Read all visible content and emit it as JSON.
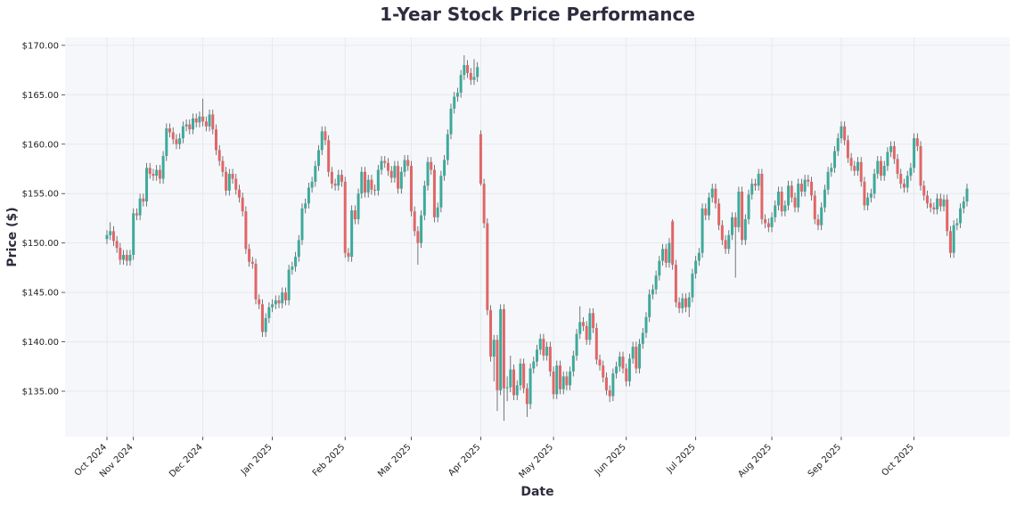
{
  "chart_data": {
    "type": "candlestick",
    "title": "1-Year Stock Price Performance",
    "x_label": "Date",
    "y_label": "Price ($)",
    "categories": [
      "Oct 2024",
      null,
      null,
      null,
      null,
      null,
      null,
      null,
      "Nov 2024",
      null,
      null,
      null,
      null,
      null,
      null,
      null,
      null,
      null,
      null,
      null,
      null,
      null,
      null,
      null,
      null,
      null,
      null,
      null,
      null,
      "Dec 2024",
      null,
      null,
      null,
      null,
      null,
      null,
      null,
      null,
      null,
      null,
      null,
      null,
      null,
      null,
      null,
      null,
      null,
      null,
      null,
      null,
      "Jan 2025",
      null,
      null,
      null,
      null,
      null,
      null,
      null,
      null,
      null,
      null,
      null,
      null,
      null,
      null,
      null,
      null,
      null,
      null,
      null,
      null,
      null,
      "Feb 2025",
      null,
      null,
      null,
      null,
      null,
      null,
      null,
      null,
      null,
      null,
      null,
      null,
      null,
      null,
      null,
      null,
      null,
      null,
      null,
      "Mar 2025",
      null,
      null,
      null,
      null,
      null,
      null,
      null,
      null,
      null,
      null,
      null,
      null,
      null,
      null,
      null,
      null,
      null,
      null,
      null,
      null,
      "Apr 2025",
      null,
      null,
      null,
      null,
      null,
      null,
      null,
      null,
      null,
      null,
      null,
      null,
      null,
      null,
      null,
      null,
      null,
      null,
      null,
      null,
      null,
      "May 2025",
      null,
      null,
      null,
      null,
      null,
      null,
      null,
      null,
      null,
      null,
      null,
      null,
      null,
      null,
      null,
      null,
      null,
      null,
      null,
      null,
      null,
      "Jun 2025",
      null,
      null,
      null,
      null,
      null,
      null,
      null,
      null,
      null,
      null,
      null,
      null,
      null,
      null,
      null,
      null,
      null,
      null,
      null,
      null,
      "Jul 2025",
      null,
      null,
      null,
      null,
      null,
      null,
      null,
      null,
      null,
      null,
      null,
      null,
      null,
      null,
      null,
      null,
      null,
      null,
      null,
      null,
      null,
      null,
      "Aug 2025",
      null,
      null,
      null,
      null,
      null,
      null,
      null,
      null,
      null,
      null,
      null,
      null,
      null,
      null,
      null,
      null,
      null,
      null,
      null,
      null,
      "Sep 2025",
      null,
      null,
      null,
      null,
      null,
      null,
      null,
      null,
      null,
      null,
      null,
      null,
      null,
      null,
      null,
      null,
      null,
      null,
      null,
      null,
      null,
      "Oct 2025",
      null,
      null,
      null,
      null,
      null,
      null,
      null,
      null,
      null,
      null,
      null,
      null,
      null,
      null,
      null,
      null
    ],
    "open": [
      150.4,
      150.8,
      151.2,
      150.2,
      149.5,
      148.3,
      148.8,
      148.2,
      148.8,
      153.0,
      152.8,
      154.5,
      154.2,
      157.6,
      157.0,
      156.8,
      157.4,
      156.5,
      158.8,
      161.6,
      161.2,
      160.5,
      160.0,
      160.6,
      161.8,
      162.0,
      161.5,
      162.6,
      162.2,
      162.8,
      162.3,
      161.8,
      163.0,
      161.5,
      159.4,
      158.3,
      157.2,
      155.3,
      157.0,
      156.5,
      155.4,
      154.6,
      153.2,
      149.4,
      148.1,
      147.9,
      144.3,
      143.8,
      141.0,
      142.4,
      143.5,
      143.8,
      144.2,
      143.9,
      145.0,
      144.2,
      147.3,
      147.6,
      148.6,
      150.3,
      153.5,
      154.0,
      155.6,
      156.2,
      157.8,
      159.4,
      161.3,
      160.4,
      157.2,
      156.0,
      155.8,
      156.9,
      156.2,
      149.0,
      148.6,
      153.3,
      152.4,
      155.0,
      157.2,
      155.1,
      156.4,
      155.4,
      155.3,
      157.4,
      158.3,
      158.1,
      157.3,
      156.6,
      157.8,
      155.5,
      157.2,
      158.4,
      157.8,
      153.2,
      151.2,
      150.0,
      152.8,
      155.8,
      158.2,
      157.4,
      152.6,
      153.6,
      156.8,
      158.4,
      161.0,
      163.6,
      164.8,
      165.2,
      167.0,
      168.0,
      167.2,
      166.5,
      166.8,
      161.0,
      156.0,
      152.0,
      143.2,
      138.5,
      140.2,
      135.1,
      143.3,
      135.3,
      135.4,
      137.2,
      134.6,
      135.6,
      137.8,
      135.3,
      133.7,
      137.3,
      138.0,
      139.2,
      140.3,
      138.6,
      139.5,
      137.0,
      134.7,
      137.6,
      135.2,
      136.5,
      135.6,
      137.0,
      138.6,
      140.8,
      142.0,
      141.6,
      140.2,
      142.9,
      141.4,
      138.2,
      137.6,
      136.4,
      135.1,
      134.5,
      136.8,
      137.5,
      138.5,
      137.3,
      136.0,
      138.3,
      139.5,
      137.3,
      139.8,
      140.9,
      142.5,
      144.8,
      145.3,
      146.7,
      148.2,
      149.4,
      148.0,
      152.2,
      147.8,
      144.0,
      143.4,
      144.4,
      143.5,
      144.5,
      146.9,
      148.2,
      149.0,
      153.5,
      152.8,
      154.6,
      155.5,
      154.0,
      151.8,
      150.3,
      149.4,
      150.8,
      152.6,
      151.6,
      155.2,
      150.3,
      152.4,
      154.9,
      156.0,
      155.8,
      157.0,
      152.4,
      152.0,
      151.6,
      152.6,
      153.8,
      155.2,
      153.2,
      153.8,
      155.8,
      154.6,
      153.6,
      156.0,
      155.2,
      156.4,
      156.2,
      154.8,
      152.4,
      151.8,
      153.6,
      155.4,
      157.2,
      157.6,
      159.3,
      160.6,
      161.8,
      160.4,
      158.6,
      157.8,
      157.3,
      158.2,
      156.2,
      153.8,
      154.6,
      155.0,
      157.0,
      158.3,
      156.8,
      157.8,
      159.2,
      159.8,
      158.5,
      157.0,
      156.0,
      155.6,
      156.8,
      157.6,
      160.6,
      159.8,
      155.8,
      154.8,
      154.0,
      153.6,
      153.4,
      154.5,
      153.7,
      154.4,
      151.2,
      149.0,
      151.8,
      152.0,
      153.5,
      154.2
    ],
    "high": [
      151.3,
      152.1,
      151.7,
      150.7,
      150.0,
      149.3,
      149.3,
      149.3,
      153.5,
      153.5,
      155.0,
      155.0,
      158.1,
      158.1,
      157.5,
      157.9,
      157.9,
      159.3,
      162.1,
      162.1,
      161.7,
      161.0,
      161.1,
      162.3,
      162.5,
      162.5,
      163.1,
      163.1,
      163.3,
      164.6,
      162.8,
      163.5,
      163.5,
      162.0,
      159.9,
      158.8,
      157.7,
      157.5,
      157.5,
      157.0,
      155.9,
      155.1,
      153.7,
      149.9,
      148.6,
      148.4,
      144.8,
      144.3,
      142.9,
      144.0,
      144.3,
      144.7,
      144.7,
      145.5,
      145.5,
      147.8,
      148.1,
      149.1,
      150.8,
      154.0,
      154.5,
      156.1,
      156.7,
      158.3,
      159.9,
      161.8,
      161.8,
      160.9,
      157.7,
      156.5,
      157.4,
      157.4,
      156.7,
      149.5,
      153.8,
      153.8,
      155.5,
      157.7,
      157.7,
      156.9,
      156.9,
      155.9,
      157.9,
      158.8,
      158.8,
      158.6,
      157.8,
      158.3,
      158.3,
      157.7,
      158.9,
      158.9,
      158.3,
      153.7,
      151.7,
      153.3,
      156.3,
      158.7,
      158.7,
      157.9,
      154.1,
      157.3,
      158.9,
      161.5,
      164.1,
      165.3,
      165.7,
      167.5,
      169.0,
      168.5,
      167.7,
      168.6,
      168.3,
      161.4,
      156.5,
      152.5,
      143.7,
      140.7,
      140.7,
      143.8,
      143.8,
      136.5,
      138.6,
      137.7,
      136.1,
      138.3,
      138.3,
      135.8,
      137.8,
      138.5,
      139.7,
      140.8,
      140.8,
      140.0,
      140.0,
      137.5,
      138.1,
      138.1,
      137.0,
      137.0,
      137.5,
      139.1,
      141.3,
      143.6,
      142.5,
      142.1,
      143.4,
      143.4,
      141.9,
      138.7,
      138.1,
      136.9,
      135.6,
      137.3,
      138.0,
      139.0,
      139.0,
      137.8,
      138.8,
      140.0,
      140.0,
      140.3,
      141.4,
      143.0,
      145.3,
      145.8,
      147.2,
      148.7,
      149.9,
      149.9,
      150.5,
      152.4,
      148.3,
      144.5,
      144.9,
      144.9,
      145.0,
      147.4,
      148.7,
      149.5,
      154.0,
      154.0,
      155.1,
      156.0,
      156.0,
      154.5,
      152.3,
      150.8,
      151.3,
      153.1,
      153.1,
      155.7,
      155.7,
      152.9,
      155.4,
      156.5,
      156.5,
      157.5,
      157.5,
      152.9,
      152.5,
      153.1,
      154.3,
      155.7,
      155.7,
      154.3,
      156.3,
      156.3,
      155.1,
      156.5,
      156.5,
      156.9,
      156.9,
      156.7,
      155.3,
      152.9,
      154.1,
      155.9,
      157.7,
      158.1,
      159.8,
      161.1,
      162.3,
      162.3,
      160.9,
      159.1,
      158.3,
      158.7,
      158.7,
      156.7,
      155.1,
      155.5,
      157.5,
      158.8,
      158.8,
      158.3,
      159.7,
      160.3,
      160.3,
      159.0,
      157.5,
      156.5,
      157.3,
      158.1,
      161.1,
      161.1,
      160.3,
      156.3,
      155.3,
      154.5,
      154.1,
      155.0,
      155.0,
      154.9,
      154.9,
      151.7,
      152.3,
      152.5,
      154.0,
      154.7,
      156.0
    ],
    "low": [
      149.9,
      150.3,
      149.7,
      149.0,
      147.8,
      147.8,
      147.7,
      147.7,
      148.3,
      152.3,
      152.3,
      153.7,
      153.7,
      156.5,
      156.3,
      156.3,
      156.0,
      156.0,
      158.3,
      160.7,
      160.0,
      159.5,
      159.5,
      160.1,
      161.3,
      161.0,
      161.0,
      161.7,
      161.7,
      161.8,
      161.3,
      161.3,
      161.0,
      158.9,
      157.8,
      156.7,
      154.8,
      154.8,
      156.0,
      154.9,
      154.1,
      152.7,
      148.9,
      147.6,
      147.4,
      143.8,
      143.3,
      140.5,
      140.5,
      141.9,
      143.0,
      143.3,
      143.4,
      143.4,
      143.7,
      143.7,
      146.8,
      147.1,
      148.1,
      149.8,
      153.0,
      153.5,
      155.1,
      155.7,
      157.3,
      158.9,
      159.9,
      156.7,
      155.5,
      155.3,
      155.3,
      155.7,
      148.5,
      148.1,
      148.1,
      151.9,
      151.9,
      154.5,
      154.6,
      154.6,
      154.9,
      154.8,
      154.8,
      156.9,
      157.6,
      156.8,
      156.1,
      156.1,
      155.0,
      155.0,
      156.7,
      157.3,
      152.7,
      150.7,
      147.8,
      149.5,
      152.3,
      155.3,
      156.9,
      152.1,
      152.1,
      153.1,
      156.3,
      157.9,
      160.5,
      163.1,
      164.3,
      164.7,
      166.5,
      166.7,
      166.0,
      166.0,
      166.3,
      155.8,
      151.5,
      142.7,
      138.0,
      136.0,
      133.0,
      134.6,
      132.0,
      134.0,
      134.9,
      134.1,
      134.1,
      135.1,
      134.8,
      132.4,
      133.2,
      136.8,
      137.5,
      138.7,
      138.1,
      138.1,
      136.5,
      134.2,
      134.2,
      134.7,
      134.7,
      135.1,
      135.1,
      136.5,
      138.1,
      140.3,
      141.1,
      139.7,
      139.7,
      140.9,
      137.7,
      137.1,
      135.9,
      134.6,
      133.9,
      134.0,
      136.3,
      137.0,
      136.8,
      135.5,
      135.5,
      137.8,
      136.8,
      136.8,
      139.3,
      140.4,
      142.0,
      144.3,
      144.8,
      146.2,
      147.7,
      147.5,
      147.5,
      147.3,
      143.5,
      142.9,
      142.9,
      143.0,
      142.5,
      144.0,
      146.4,
      147.7,
      148.5,
      152.3,
      152.3,
      154.1,
      153.5,
      151.3,
      149.8,
      148.9,
      148.9,
      150.3,
      146.5,
      151.1,
      149.8,
      149.8,
      151.9,
      154.4,
      155.3,
      155.3,
      151.9,
      151.5,
      151.1,
      151.1,
      152.1,
      153.3,
      152.7,
      152.7,
      153.3,
      154.1,
      153.1,
      153.1,
      154.7,
      154.7,
      155.7,
      154.3,
      151.9,
      151.3,
      151.3,
      153.1,
      154.9,
      156.7,
      157.1,
      158.8,
      160.1,
      159.9,
      158.1,
      157.3,
      156.8,
      156.8,
      155.7,
      153.3,
      153.3,
      154.1,
      154.5,
      156.5,
      156.3,
      156.3,
      157.3,
      158.7,
      158.0,
      156.5,
      155.5,
      155.1,
      155.1,
      156.3,
      157.1,
      159.3,
      155.3,
      154.3,
      153.5,
      153.1,
      152.9,
      152.9,
      153.2,
      153.2,
      150.7,
      148.5,
      148.5,
      151.3,
      151.5,
      153.0,
      153.7
    ],
    "close": [
      150.8,
      151.2,
      150.2,
      149.5,
      148.3,
      148.8,
      148.2,
      148.8,
      153.0,
      152.8,
      154.5,
      154.2,
      157.6,
      157.0,
      156.8,
      157.4,
      156.5,
      158.8,
      161.6,
      161.2,
      160.5,
      160.0,
      160.6,
      161.8,
      162.0,
      161.5,
      162.6,
      162.2,
      162.8,
      162.3,
      161.8,
      163.0,
      161.5,
      159.4,
      158.3,
      157.2,
      155.3,
      157.0,
      156.5,
      155.4,
      154.6,
      153.2,
      149.4,
      148.1,
      147.9,
      144.3,
      143.8,
      141.0,
      142.4,
      143.5,
      143.8,
      144.2,
      143.9,
      145.0,
      144.2,
      147.3,
      147.6,
      148.6,
      150.3,
      153.5,
      154.0,
      155.6,
      156.2,
      157.8,
      159.4,
      161.3,
      160.4,
      157.2,
      156.0,
      155.8,
      156.9,
      156.2,
      149.0,
      148.6,
      153.3,
      152.4,
      155.0,
      157.2,
      155.1,
      156.4,
      155.4,
      155.3,
      157.4,
      158.3,
      158.1,
      157.3,
      156.6,
      157.8,
      155.5,
      157.2,
      158.4,
      157.8,
      153.2,
      151.2,
      150.0,
      152.8,
      155.8,
      158.2,
      157.4,
      152.6,
      153.6,
      156.8,
      158.4,
      161.0,
      163.6,
      164.8,
      165.2,
      167.0,
      168.0,
      167.2,
      166.5,
      166.8,
      167.8,
      156.0,
      152.0,
      143.2,
      138.5,
      140.2,
      135.1,
      143.3,
      135.3,
      135.4,
      137.2,
      134.6,
      135.6,
      137.8,
      135.3,
      133.7,
      137.3,
      138.0,
      139.2,
      140.3,
      138.6,
      139.5,
      137.0,
      134.7,
      137.6,
      135.2,
      136.5,
      135.6,
      137.0,
      138.6,
      140.8,
      142.0,
      141.6,
      140.2,
      142.9,
      141.4,
      138.2,
      137.6,
      136.4,
      135.1,
      134.5,
      136.8,
      137.5,
      138.5,
      137.3,
      136.0,
      138.3,
      139.5,
      137.3,
      139.8,
      140.9,
      142.5,
      144.8,
      145.3,
      146.7,
      148.2,
      149.4,
      148.0,
      150.0,
      147.8,
      144.0,
      143.4,
      144.4,
      143.5,
      144.5,
      146.9,
      148.2,
      149.0,
      153.5,
      152.8,
      154.6,
      155.5,
      154.0,
      151.8,
      150.3,
      149.4,
      150.8,
      152.6,
      151.6,
      155.2,
      150.3,
      152.4,
      154.9,
      156.0,
      155.8,
      157.0,
      152.4,
      152.0,
      151.6,
      152.6,
      153.8,
      155.2,
      153.2,
      153.8,
      155.8,
      154.6,
      153.6,
      156.0,
      155.2,
      156.4,
      156.2,
      154.8,
      152.4,
      151.8,
      153.6,
      155.4,
      157.2,
      157.6,
      159.3,
      160.6,
      161.8,
      160.4,
      158.6,
      157.8,
      157.3,
      158.2,
      156.2,
      153.8,
      154.6,
      155.0,
      157.0,
      158.3,
      156.8,
      157.8,
      159.2,
      159.8,
      158.5,
      157.0,
      156.0,
      155.6,
      156.8,
      157.6,
      160.6,
      159.8,
      155.8,
      154.8,
      154.0,
      153.6,
      153.4,
      154.5,
      153.7,
      154.4,
      151.2,
      149.0,
      151.8,
      152.0,
      153.5,
      154.2,
      155.5
    ],
    "up_color": "#3fa99b",
    "down_color": "#e06666",
    "wick_color": "#555555",
    "ylim": [
      130.4,
      170.8
    ],
    "yticks": [
      {
        "value": 135,
        "label": "$135.00"
      },
      {
        "value": 140,
        "label": "$140.00"
      },
      {
        "value": 145,
        "label": "$145.00"
      },
      {
        "value": 150,
        "label": "$150.00"
      },
      {
        "value": 155,
        "label": "$155.00"
      },
      {
        "value": 160,
        "label": "$160.00"
      },
      {
        "value": 165,
        "label": "$165.00"
      },
      {
        "value": 170,
        "label": "$170.00"
      }
    ],
    "grid": true
  }
}
